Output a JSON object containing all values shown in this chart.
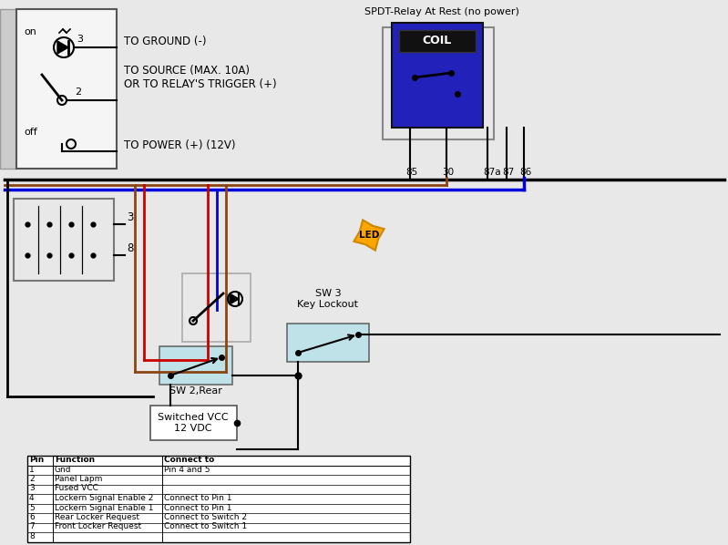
{
  "bg_color": "#e8e8e8",
  "switch_labels": {
    "on": "on",
    "off": "off",
    "pin3": "3",
    "pin2": "2",
    "ground": "TO GROUND (-)",
    "source": "TO SOURCE (MAX. 10A)\nOR TO RELAY'S TRIGGER (+)",
    "power": "TO POWER (+) (12V)"
  },
  "relay_label": "SPDT-Relay At Rest (no power)",
  "relay_coil": "COIL",
  "relay_pins": [
    "85",
    "30",
    "87a",
    "87",
    "86"
  ],
  "led_label": "LED",
  "sw2_label": "SW 2,Rear",
  "sw3_label": "SW 3\nKey Lockout",
  "vcc_label": "Switched VCC\n12 VDC",
  "table_headers": [
    "Pin",
    "Function",
    "Connect to"
  ],
  "table_rows": [
    [
      "1",
      "Gnd",
      "Pin 4 and 5"
    ],
    [
      "2",
      "Panel Lapm",
      ""
    ],
    [
      "3",
      "Fused VCC",
      ""
    ],
    [
      "4",
      "Lockern Signal Enable 2",
      "Connect to Pin 1"
    ],
    [
      "5",
      "Lockern Signal Enable 1",
      "Connect to Pin 1"
    ],
    [
      "6",
      "Rear Locker Request",
      "Connect to Switch 2"
    ],
    [
      "7",
      "Front Locker Request",
      "Connect to Switch 1"
    ],
    [
      "8",
      "",
      ""
    ]
  ],
  "wire_colors": {
    "black": "#000000",
    "red": "#cc0000",
    "blue": "#0000dd",
    "brown": "#8B4513",
    "orange": "#FFA500"
  }
}
